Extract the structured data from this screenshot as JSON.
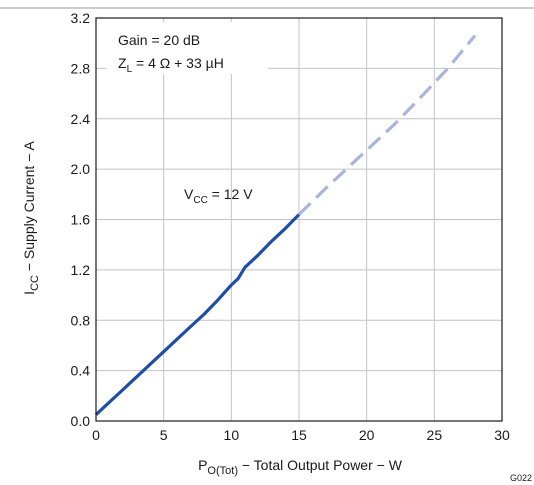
{
  "chart_data": {
    "type": "line",
    "title": "",
    "xlabel": {
      "main": "P",
      "sub": "O(Tot)",
      "rest": " − Total Output Power − W"
    },
    "ylabel": {
      "main": "I",
      "sub": "CC",
      "rest": " − Supply Current − A"
    },
    "xlim": [
      0,
      30
    ],
    "ylim": [
      0,
      3.2
    ],
    "xticks": [
      "0",
      "5",
      "10",
      "15",
      "20",
      "25",
      "30"
    ],
    "yticks": [
      "0.0",
      "0.4",
      "0.8",
      "1.2",
      "1.6",
      "2.0",
      "2.4",
      "2.8",
      "3.2"
    ],
    "grid": true,
    "series": [
      {
        "style": "solid",
        "color": "#1f4ea6",
        "x": [
          0,
          1,
          2,
          3,
          4,
          5,
          6,
          7,
          8,
          9,
          10,
          10.5,
          11,
          12,
          13,
          14,
          15
        ],
        "y": [
          0.05,
          0.15,
          0.25,
          0.35,
          0.45,
          0.55,
          0.65,
          0.75,
          0.85,
          0.96,
          1.08,
          1.13,
          1.22,
          1.32,
          1.43,
          1.53,
          1.64
        ]
      },
      {
        "style": "dashed",
        "color": "#a9b5de",
        "x": [
          15,
          17,
          19,
          20,
          22,
          24,
          26,
          28
        ],
        "y": [
          1.64,
          1.85,
          2.05,
          2.15,
          2.35,
          2.57,
          2.8,
          3.06
        ]
      }
    ],
    "annotations": {
      "gain": "Gain = 20 dB",
      "zl": {
        "main": "Z",
        "sub": "L",
        "rest": " = 4 Ω + 33 µH"
      },
      "vcc": {
        "main": "V",
        "sub": "CC",
        "rest": " = 12 V"
      }
    },
    "figure_id": "G022"
  }
}
